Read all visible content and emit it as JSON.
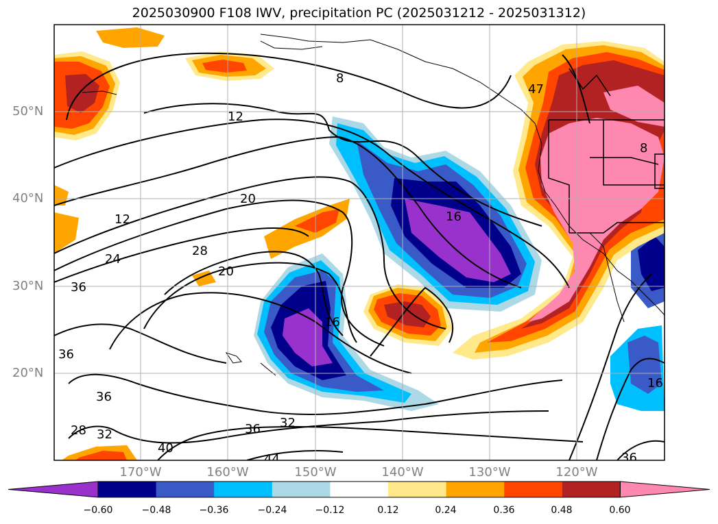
{
  "title": "2025030900 F108 IWV, precipitation PC (2025031212 - 2025031312)",
  "lat_labels": [
    "50°N",
    "40°N",
    "30°N",
    "20°N"
  ],
  "lon_labels": [
    "170°W",
    "160°W",
    "150°W",
    "140°W",
    "130°W",
    "120°W"
  ],
  "colorbar": {
    "ticks": [
      "−0.60",
      "−0.48",
      "−0.36",
      "−0.24",
      "−0.12",
      "0.12",
      "0.24",
      "0.36",
      "0.48",
      "0.60"
    ],
    "colors": [
      "#9932cc",
      "#00008b",
      "#3a5bc7",
      "#00bfff",
      "#add8e6",
      "#ffffff",
      "#ffe98a",
      "#ffa500",
      "#ff4500",
      "#b22222",
      "#ff88b0"
    ]
  },
  "contour_labels": [
    "8",
    "12",
    "12",
    "16",
    "16",
    "20",
    "20",
    "24",
    "28",
    "28",
    "32",
    "32",
    "36",
    "36",
    "36",
    "36",
    "36",
    "40",
    "44",
    "47",
    "16",
    "8"
  ]
}
